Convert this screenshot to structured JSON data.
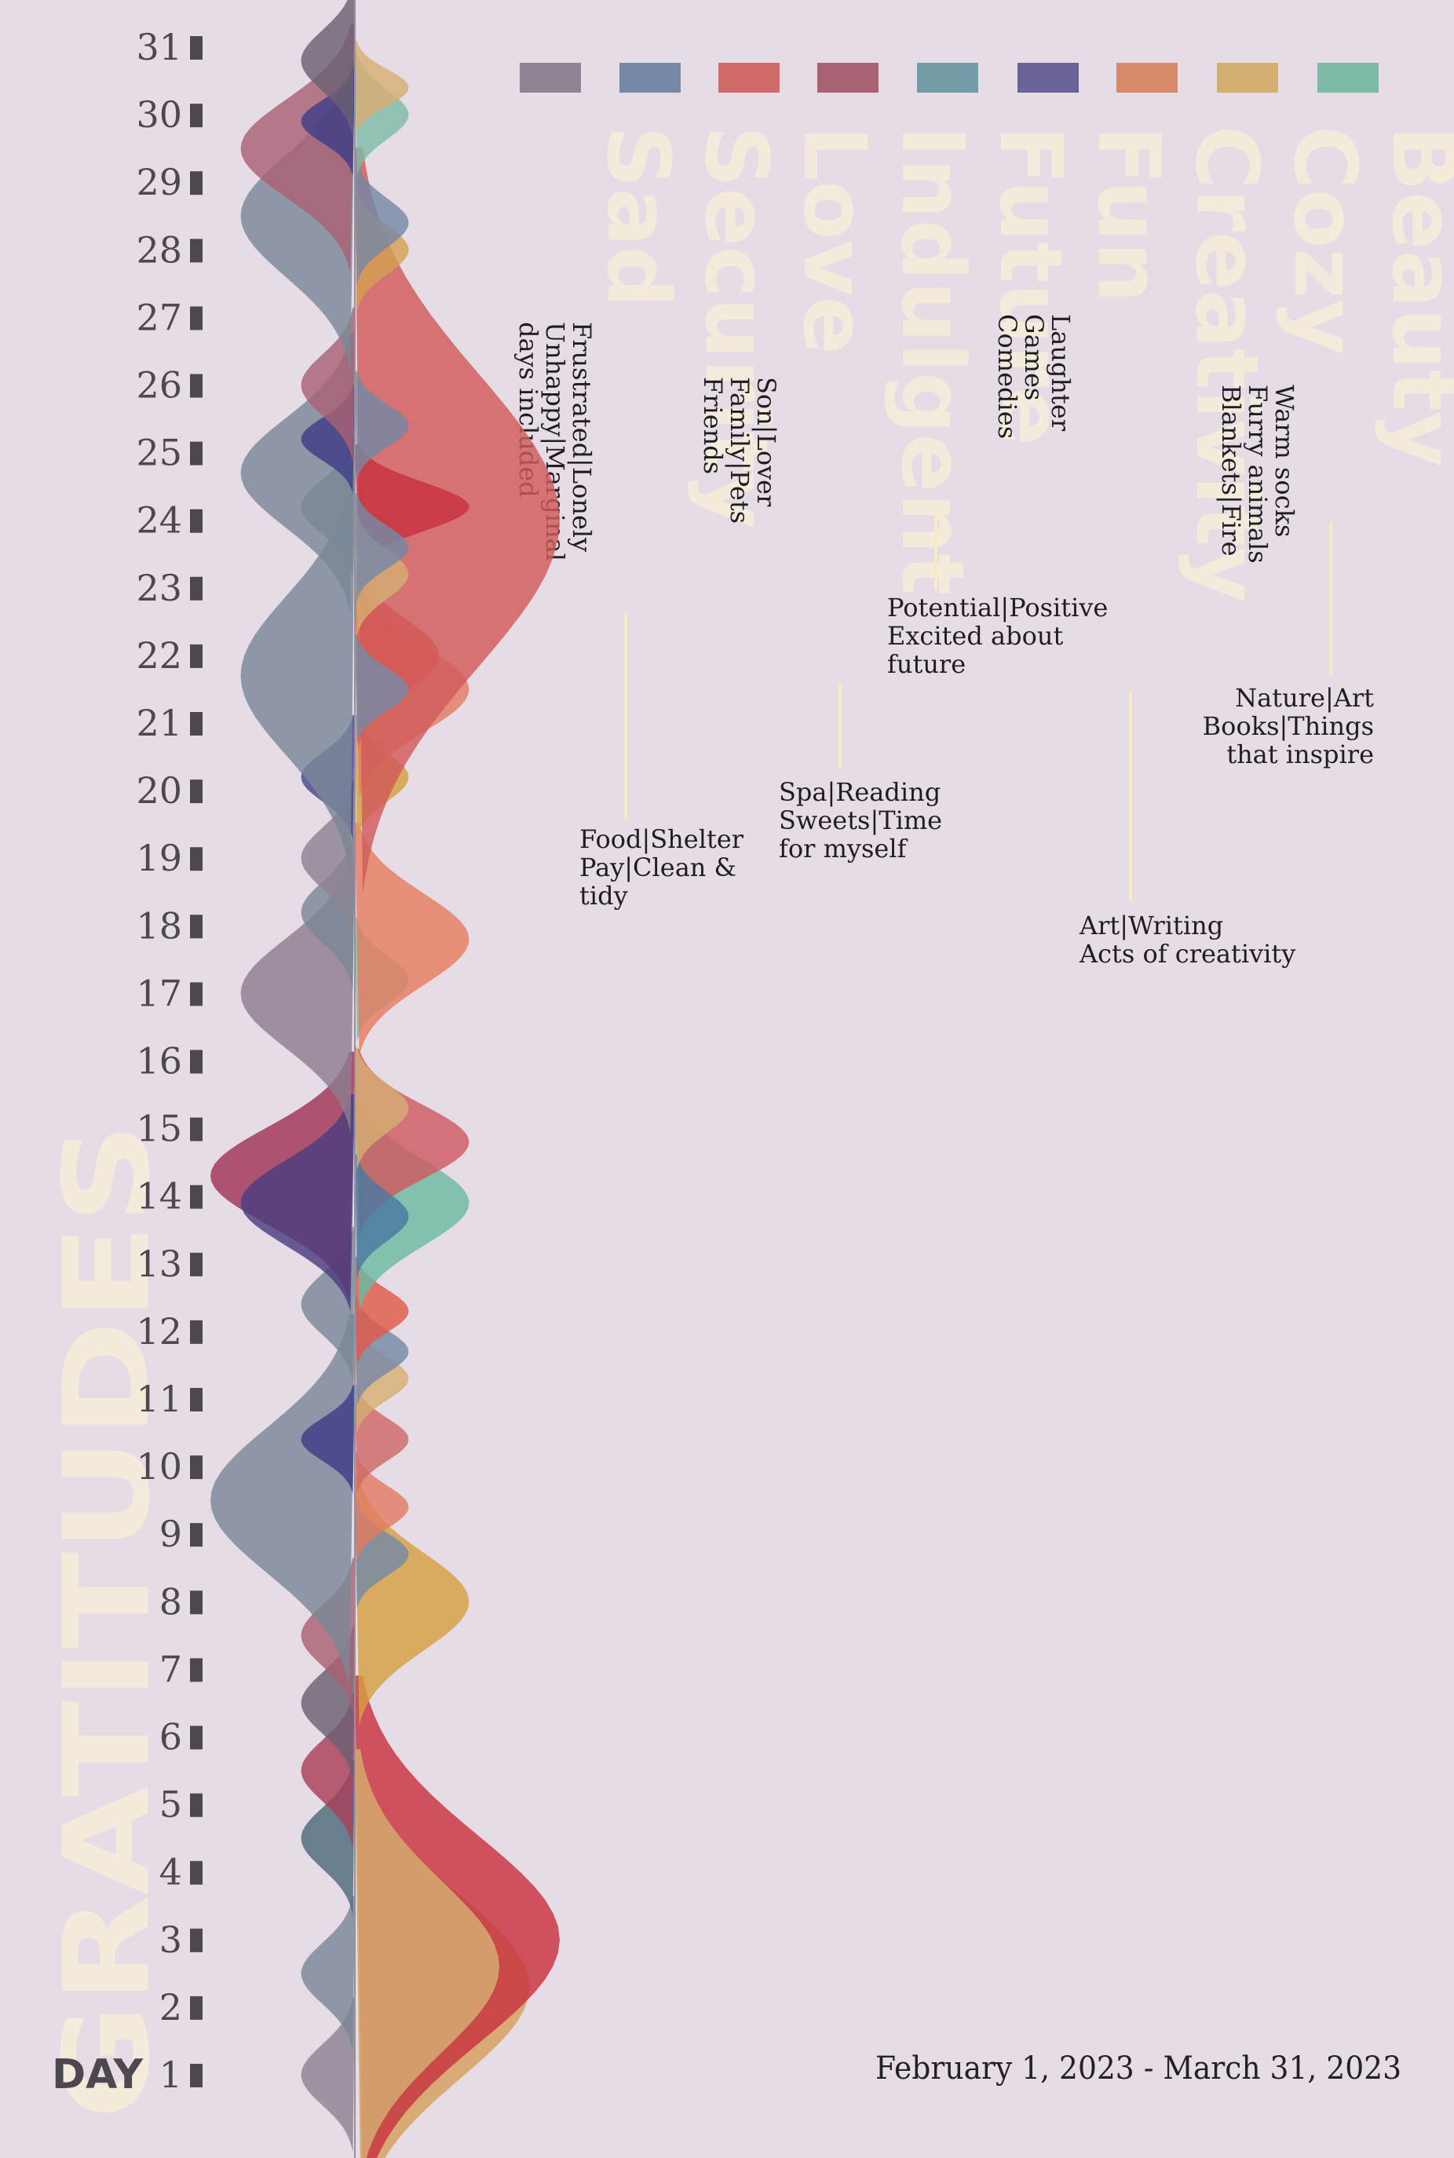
{
  "page": {
    "background": "#e6dce6",
    "watermark": "GRATITUDES",
    "axis_label": "DAY",
    "date_range": "February 1, 2023 - March 31, 2023"
  },
  "chart_data": {
    "type": "area",
    "orientation": "vertical",
    "y_axis": {
      "label": "DAY",
      "ticks": [
        1,
        2,
        3,
        4,
        5,
        6,
        7,
        8,
        9,
        10,
        11,
        12,
        13,
        14,
        15,
        16,
        17,
        18,
        19,
        20,
        21,
        22,
        23,
        24,
        25,
        26,
        27,
        28,
        29,
        30,
        31
      ]
    },
    "categories": [
      {
        "name": "Beauty",
        "color": "#7dbba6",
        "description": [
          "Nature|Art",
          "Books|Things",
          "that inspire"
        ]
      },
      {
        "name": "Cozy",
        "color": "#d5ae72",
        "description": [
          "Warm socks",
          "Furry animals",
          "Blankets|Fire"
        ]
      },
      {
        "name": "Creativity",
        "color": "#d88b6b",
        "description": [
          "Art|Writing",
          "Acts of creativity"
        ]
      },
      {
        "name": "Fun",
        "color": "#6c6399",
        "description": [
          "Laughter",
          "Games",
          "Comedies"
        ]
      },
      {
        "name": "Future",
        "color": "#739ca6",
        "description": [
          "Potential|Positive",
          "Excited about",
          "future"
        ]
      },
      {
        "name": "Indulgent",
        "color": "#a86274",
        "description": [
          "Spa|Reading",
          "Sweets|Time",
          "for myself"
        ]
      },
      {
        "name": "Love",
        "color": "#d06a68",
        "description": [
          "Son|Lover",
          "Family|Pets",
          "Friends"
        ]
      },
      {
        "name": "Security",
        "color": "#7589a6",
        "description": [
          "Food|Shelter",
          "Pay|Clean &",
          "tidy"
        ]
      },
      {
        "name": "Sad",
        "color": "#8e8393",
        "description": [
          "Frustrated|Lonely",
          "Unhappy|Marginal",
          "days included"
        ]
      }
    ],
    "series": [
      {
        "side": "left",
        "day": 1,
        "spread": 1,
        "intensity": 1,
        "color": "#8e8393"
      },
      {
        "side": "left",
        "day": 2.5,
        "spread": 1,
        "intensity": 1,
        "color": "#7a8896"
      },
      {
        "side": "right",
        "day": 2.3,
        "spread": 3,
        "intensity": 5,
        "color": "#d5a05a"
      },
      {
        "side": "right",
        "day": 3,
        "spread": 3.4,
        "intensity": 6,
        "color": "#c8323e"
      },
      {
        "side": "right",
        "day": 2.6,
        "spread": 2.8,
        "intensity": 4,
        "color": "#d5ae72"
      },
      {
        "side": "left",
        "day": 4.5,
        "spread": 1,
        "intensity": 1,
        "color": "#4e6a7a"
      },
      {
        "side": "left",
        "day": 5.5,
        "spread": 1,
        "intensity": 1,
        "color": "#a84058"
      },
      {
        "side": "left",
        "day": 6.5,
        "spread": 1,
        "intensity": 1,
        "color": "#6a6072"
      },
      {
        "side": "left",
        "day": 7.5,
        "spread": 1,
        "intensity": 1,
        "color": "#a86274"
      },
      {
        "side": "right",
        "day": 8,
        "spread": 1.6,
        "intensity": 3,
        "color": "#d5a040"
      },
      {
        "side": "left",
        "day": 9.5,
        "spread": 2.4,
        "intensity": 4,
        "color": "#7a8896"
      },
      {
        "side": "right",
        "day": 8.7,
        "spread": 0.7,
        "intensity": 1,
        "color": "#7589a6"
      },
      {
        "side": "right",
        "day": 9.4,
        "spread": 0.7,
        "intensity": 1,
        "color": "#e07c62"
      },
      {
        "side": "right",
        "day": 10.4,
        "spread": 0.7,
        "intensity": 1,
        "color": "#d06a68"
      },
      {
        "side": "left",
        "day": 10.4,
        "spread": 0.7,
        "intensity": 1,
        "color": "#3e3d88"
      },
      {
        "side": "right",
        "day": 11.3,
        "spread": 0.7,
        "intensity": 1,
        "color": "#d5ae72"
      },
      {
        "side": "right",
        "day": 11.7,
        "spread": 0.7,
        "intensity": 1,
        "color": "#7589a6"
      },
      {
        "side": "right",
        "day": 12.3,
        "spread": 0.7,
        "intensity": 1,
        "color": "#e05a48"
      },
      {
        "side": "left",
        "day": 12.4,
        "spread": 1,
        "intensity": 1,
        "color": "#7a8896"
      },
      {
        "side": "left",
        "day": 14.3,
        "spread": 1.6,
        "intensity": 4,
        "color": "#a03458"
      },
      {
        "side": "left",
        "day": 13.9,
        "spread": 1.4,
        "intensity": 3,
        "color": "#4a3d80"
      },
      {
        "side": "right",
        "day": 13.9,
        "spread": 1.4,
        "intensity": 3,
        "color": "#6abba0"
      },
      {
        "side": "right",
        "day": 14.8,
        "spread": 1.2,
        "intensity": 3,
        "color": "#d05a60"
      },
      {
        "side": "right",
        "day": 13.7,
        "spread": 0.8,
        "intensity": 1,
        "color": "#4a78a0"
      },
      {
        "side": "right",
        "day": 15.3,
        "spread": 0.8,
        "intensity": 1,
        "color": "#d5ae72"
      },
      {
        "side": "left",
        "day": 17,
        "spread": 1.8,
        "intensity": 3,
        "color": "#8e7c90"
      },
      {
        "side": "right",
        "day": 17.2,
        "spread": 0.8,
        "intensity": 1,
        "color": "#7dbba6"
      },
      {
        "side": "right",
        "day": 17.8,
        "spread": 1.5,
        "intensity": 3,
        "color": "#e67c60"
      },
      {
        "side": "left",
        "day": 18.2,
        "spread": 1,
        "intensity": 1,
        "color": "#7a8896"
      },
      {
        "side": "left",
        "day": 19,
        "spread": 1,
        "intensity": 1,
        "color": "#8e8393"
      },
      {
        "side": "left",
        "day": 20.2,
        "spread": 0.8,
        "intensity": 1,
        "color": "#4a4590"
      },
      {
        "side": "right",
        "day": 20.2,
        "spread": 0.8,
        "intensity": 1,
        "color": "#d5a040"
      },
      {
        "side": "left",
        "day": 21.7,
        "spread": 2.6,
        "intensity": 3,
        "color": "#7a8896"
      },
      {
        "side": "right",
        "day": 21.5,
        "spread": 1.4,
        "intensity": 3,
        "color": "#e07c62"
      },
      {
        "side": "right",
        "day": 22,
        "spread": 1.2,
        "intensity": 2,
        "color": "#e05a48"
      },
      {
        "side": "right",
        "day": 24,
        "spread": 4.8,
        "intensity": 6,
        "color": "#d05a5a"
      },
      {
        "side": "right",
        "day": 24.2,
        "spread": 0.8,
        "intensity": 3,
        "color": "#c8323e"
      },
      {
        "side": "right",
        "day": 21.5,
        "spread": 0.7,
        "intensity": 1,
        "color": "#7589a6"
      },
      {
        "side": "right",
        "day": 23.2,
        "spread": 0.8,
        "intensity": 1,
        "color": "#d5ae72"
      },
      {
        "side": "right",
        "day": 23.6,
        "spread": 0.7,
        "intensity": 1,
        "color": "#7589a6"
      },
      {
        "side": "left",
        "day": 24.2,
        "spread": 0.9,
        "intensity": 1,
        "color": "#7a8896"
      },
      {
        "side": "left",
        "day": 24.7,
        "spread": 1.8,
        "intensity": 3,
        "color": "#7a8896"
      },
      {
        "side": "left",
        "day": 25.2,
        "spread": 0.7,
        "intensity": 1,
        "color": "#3e3d88"
      },
      {
        "side": "right",
        "day": 25.4,
        "spread": 0.7,
        "intensity": 1,
        "color": "#7589a6"
      },
      {
        "side": "left",
        "day": 26,
        "spread": 1,
        "intensity": 1,
        "color": "#a86274"
      },
      {
        "side": "right",
        "day": 28,
        "spread": 0.8,
        "intensity": 1,
        "color": "#d5a050"
      },
      {
        "side": "right",
        "day": 28.4,
        "spread": 0.8,
        "intensity": 1,
        "color": "#7589a6"
      },
      {
        "side": "left",
        "day": 28.5,
        "spread": 2,
        "intensity": 3,
        "color": "#7a8896"
      },
      {
        "side": "left",
        "day": 29.5,
        "spread": 1.6,
        "intensity": 3,
        "color": "#a86274"
      },
      {
        "side": "left",
        "day": 29.9,
        "spread": 0.7,
        "intensity": 1,
        "color": "#3e3d88"
      },
      {
        "side": "right",
        "day": 30,
        "spread": 0.8,
        "intensity": 1,
        "color": "#7dbba6"
      },
      {
        "side": "right",
        "day": 30.4,
        "spread": 0.6,
        "intensity": 1,
        "color": "#d5ae72"
      },
      {
        "side": "left",
        "day": 30.8,
        "spread": 1,
        "intensity": 1,
        "color": "#6a6072"
      }
    ]
  }
}
